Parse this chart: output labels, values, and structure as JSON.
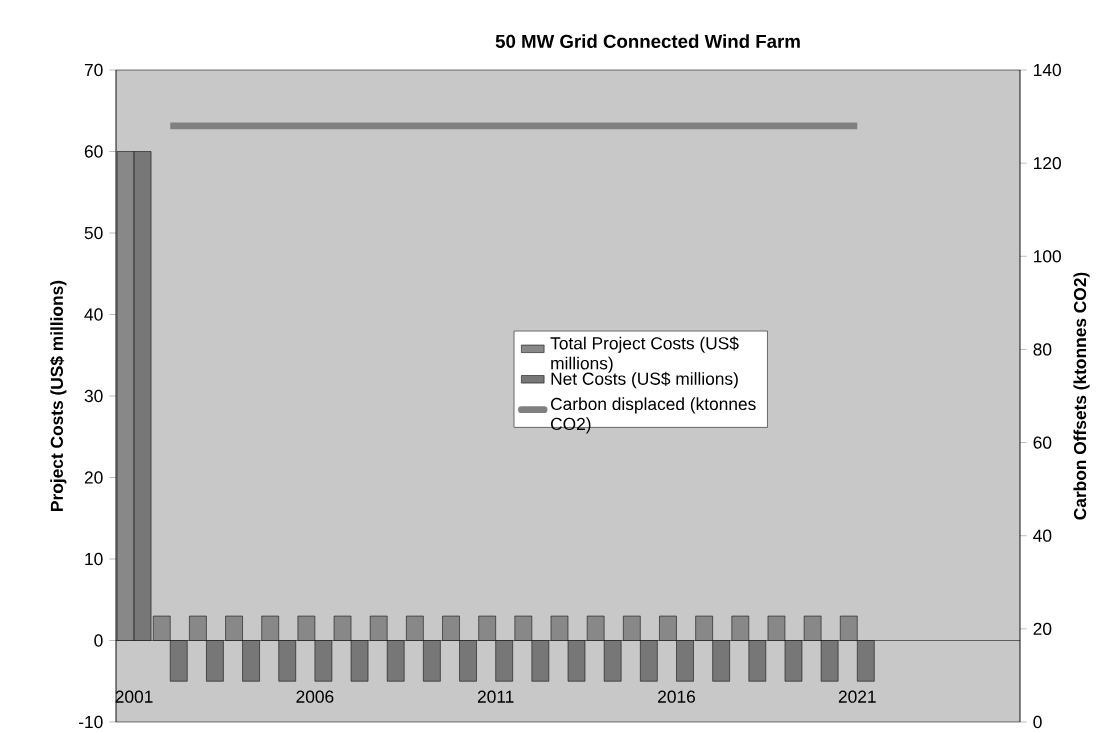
{
  "chart_data": {
    "type": "bar",
    "title": "50 MW Grid Connected Wind Farm",
    "ylabel": "Project Costs (US$ millions)",
    "y2label": "Carbon Offsets (ktonnes CO2)",
    "categories": [
      "2001",
      null,
      null,
      null,
      null,
      "2006",
      null,
      null,
      null,
      null,
      "2011",
      null,
      null,
      null,
      null,
      "2016",
      null,
      null,
      null,
      null,
      "2021",
      null,
      null,
      null,
      null
    ],
    "series": [
      {
        "name": "Total Project Costs (US$ millions)",
        "color": "#888888",
        "values": [
          60,
          3,
          3,
          3,
          3,
          3,
          3,
          3,
          3,
          3,
          3,
          3,
          3,
          3,
          3,
          3,
          3,
          3,
          3,
          3,
          3,
          null,
          null,
          null,
          null
        ]
      },
      {
        "name": "Net Costs (US$ millions)",
        "color": "#777777",
        "values": [
          60,
          -5,
          -5,
          -5,
          -5,
          -5,
          -5,
          -5,
          -5,
          -5,
          -5,
          -5,
          -5,
          -5,
          -5,
          -5,
          -5,
          -5,
          -5,
          -5,
          -5,
          null,
          null,
          null,
          null
        ]
      },
      {
        "name": "Carbon displaced (ktonnes CO2)",
        "type": "line",
        "axis": "y2",
        "color": "#808080",
        "values": [
          null,
          128,
          128,
          128,
          128,
          128,
          128,
          128,
          128,
          128,
          128,
          128,
          128,
          128,
          128,
          128,
          128,
          128,
          128,
          128,
          128,
          null,
          null,
          null,
          null
        ]
      }
    ],
    "ylim": [
      -10,
      70
    ],
    "yticks": [
      -10,
      0,
      10,
      20,
      30,
      40,
      50,
      60,
      70
    ],
    "y2lim": [
      0,
      140
    ],
    "y2ticks": [
      0,
      20,
      40,
      60,
      80,
      100,
      120,
      140
    ],
    "legend": "right"
  }
}
